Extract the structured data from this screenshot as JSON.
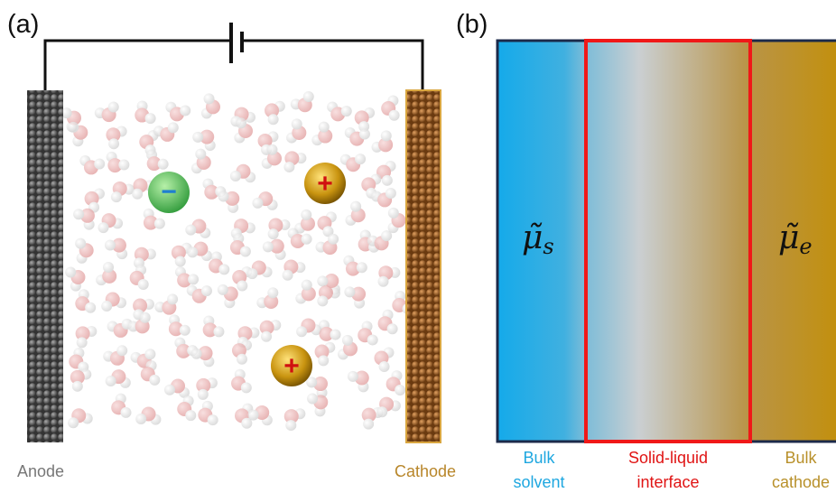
{
  "panel_a": {
    "label": "(a)",
    "anode_label": "Anode",
    "cathode_label": "Cathode",
    "ions": [
      {
        "sign": "−"
      },
      {
        "sign": "+"
      },
      {
        "sign": "+"
      }
    ]
  },
  "panel_b": {
    "label": "(b)",
    "mu_s": {
      "symbol": "μ̃",
      "subscript": "s"
    },
    "mu_e": {
      "symbol": "μ̃",
      "subscript": "e"
    },
    "regions": [
      {
        "lines": [
          "Bulk",
          "solvent"
        ]
      },
      {
        "lines": [
          "Solid-liquid",
          "interface"
        ]
      },
      {
        "lines": [
          "Bulk",
          "cathode"
        ]
      }
    ]
  }
}
